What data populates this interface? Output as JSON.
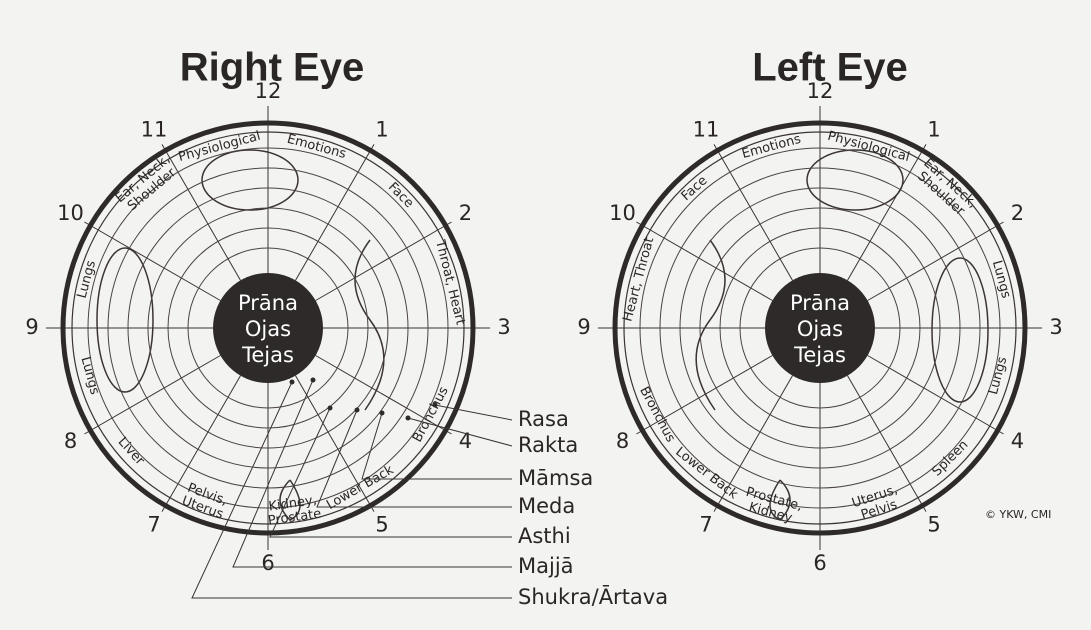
{
  "right_eye": {
    "title": "Right Eye",
    "center": [
      "Prāna",
      "Ojas",
      "Tejas"
    ],
    "hours": [
      "12",
      "1",
      "2",
      "3",
      "4",
      "5",
      "6",
      "7",
      "8",
      "9",
      "10",
      "11"
    ],
    "zones": [
      [
        "Physiological"
      ],
      [
        "Emotions"
      ],
      [
        "Face"
      ],
      [
        "Throat, Heart"
      ],
      [
        "Bronchus"
      ],
      [
        "Lower Back"
      ],
      [
        "Kidney,",
        "Prostate"
      ],
      [
        "Pelvis,",
        "Uterus"
      ],
      [
        "Liver"
      ],
      [
        "Lungs"
      ],
      [
        "Lungs"
      ],
      [
        "Ear, Neck,",
        "Shoulder"
      ]
    ]
  },
  "left_eye": {
    "title": "Left Eye",
    "center": [
      "Prāna",
      "Ojas",
      "Tejas"
    ],
    "hours": [
      "12",
      "1",
      "2",
      "3",
      "4",
      "5",
      "6",
      "7",
      "8",
      "9",
      "10",
      "11"
    ],
    "zones": [
      [
        "Emotions"
      ],
      [
        "Physiological"
      ],
      [
        "Ear, Neck,",
        "Shoulder"
      ],
      [
        "Lungs"
      ],
      [
        "Lungs"
      ],
      [
        "Spleen"
      ],
      [
        "Uterus,",
        "Pelvis"
      ],
      [
        "Prostate,",
        "Kidney"
      ],
      [
        "Lower Back"
      ],
      [
        "Bronchus"
      ],
      [
        "Heart, Throat"
      ],
      [
        "Face"
      ]
    ]
  },
  "tissues": [
    "Rasa",
    "Rakta",
    "Māmsa",
    "Meda",
    "Asthi",
    "Majjā",
    "Shukra/Ārtava"
  ],
  "copyright": "© YKW, CMI"
}
